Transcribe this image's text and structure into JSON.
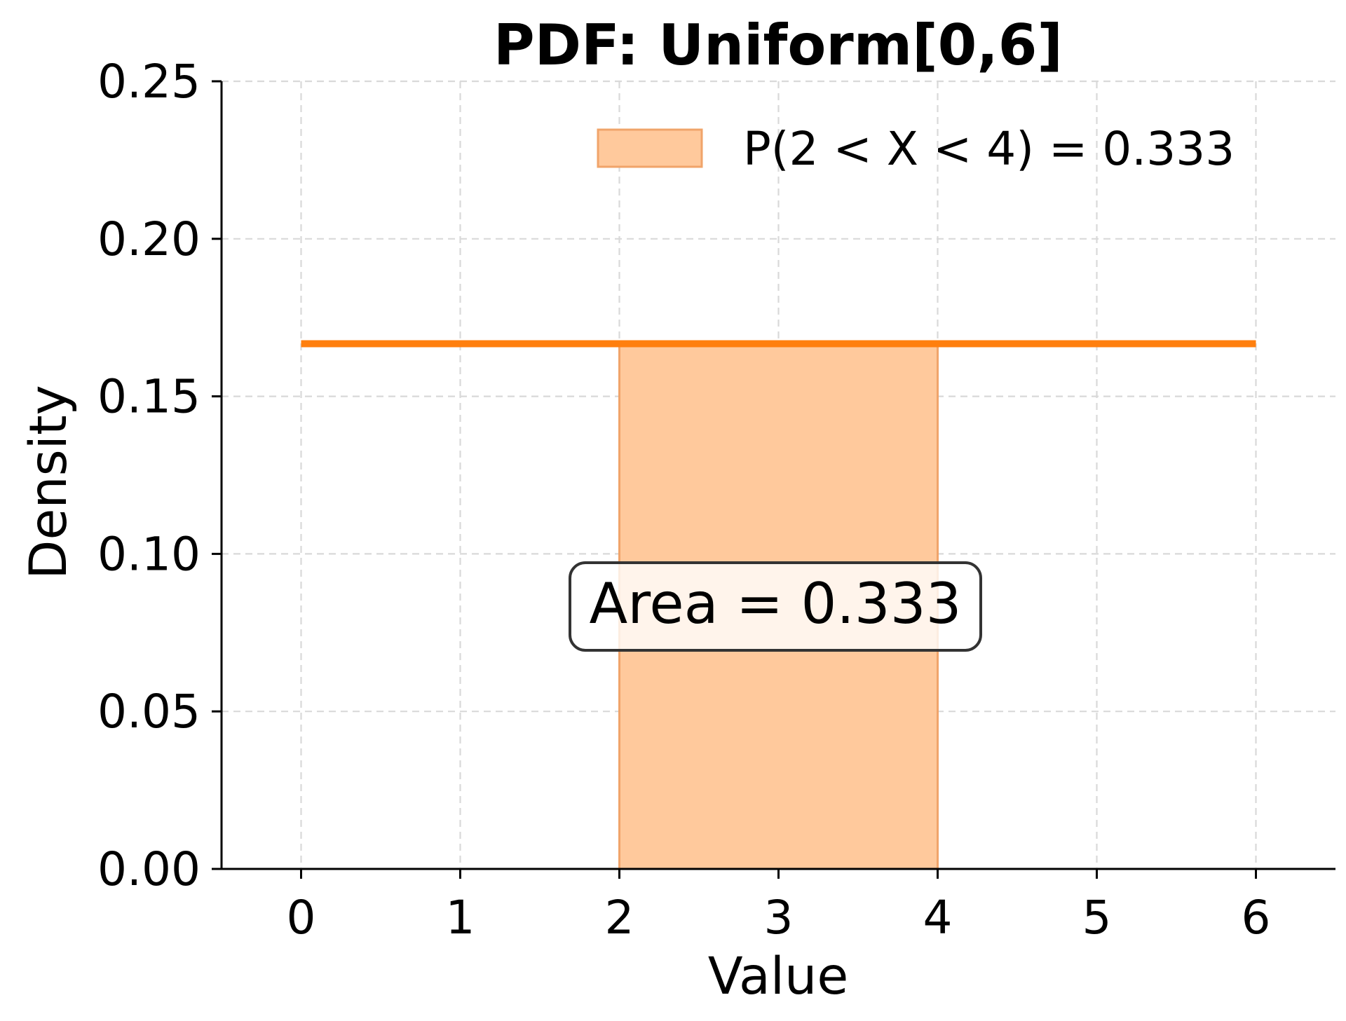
{
  "chart_data": {
    "type": "line",
    "title": "PDF: Uniform[0,6]",
    "xlabel": "Value",
    "ylabel": "Density",
    "xlim": [
      -0.5,
      6.5
    ],
    "ylim": [
      0,
      0.25
    ],
    "x_ticks": [
      0,
      1,
      2,
      3,
      4,
      5,
      6
    ],
    "x_tick_labels": [
      "0",
      "1",
      "2",
      "3",
      "4",
      "5",
      "6"
    ],
    "y_ticks": [
      0,
      0.05,
      0.1,
      0.15,
      0.2,
      0.25
    ],
    "y_tick_labels": [
      "0.00",
      "0.05",
      "0.10",
      "0.15",
      "0.20",
      "0.25"
    ],
    "grid": true,
    "series": [
      {
        "x": [
          0,
          6
        ],
        "y": [
          0.1667,
          0.1667
        ],
        "color": "#ff7f0e"
      }
    ],
    "shaded_region": {
      "x_start": 2,
      "x_end": 4,
      "y": 0.1667,
      "color": "#ffc99c",
      "label": "P(2 < X < 4) = 0.333"
    },
    "legend": {
      "position": "upper right",
      "entries": [
        {
          "label": "P(2 < X < 4) = 0.333",
          "color": "#ffc99c"
        }
      ]
    },
    "annotation": {
      "text": "Area = 0.333",
      "x": 3,
      "y": 0.083
    }
  }
}
